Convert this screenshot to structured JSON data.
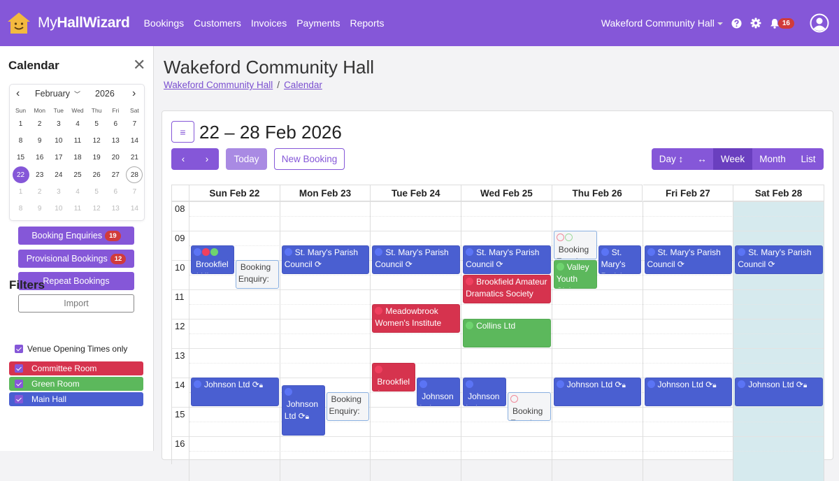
{
  "topbar": {
    "brand_light": "My",
    "brand_bold": "HallWizard",
    "nav": [
      "Bookings",
      "Customers",
      "Invoices",
      "Payments",
      "Reports"
    ],
    "venue": "Wakeford Community Hall",
    "notifications": "16",
    "icons": [
      "help-icon",
      "gear-icon",
      "bell-icon",
      "user-avatar-icon"
    ]
  },
  "sidebar": {
    "title": "Calendar",
    "mini": {
      "month": "February",
      "year": "2026",
      "dow": [
        "Sun",
        "Mon",
        "Tue",
        "Wed",
        "Thu",
        "Fri",
        "Sat"
      ],
      "days": [
        [
          "1",
          "2",
          "3",
          "4",
          "5",
          "6",
          "7"
        ],
        [
          "8",
          "9",
          "10",
          "11",
          "12",
          "13",
          "14"
        ],
        [
          "15",
          "16",
          "17",
          "18",
          "19",
          "20",
          "21"
        ],
        [
          "22",
          "23",
          "24",
          "25",
          "26",
          "27",
          "28"
        ],
        [
          "1",
          "2",
          "3",
          "4",
          "5",
          "6",
          "7"
        ],
        [
          "8",
          "9",
          "10",
          "11",
          "12",
          "13",
          "14"
        ]
      ],
      "selected": "22",
      "today": "28"
    },
    "buttons": [
      {
        "label": "Booking Enquiries",
        "count": "19"
      },
      {
        "label": "Provisional Bookings",
        "count": "12"
      },
      {
        "label": "Repeat Bookings"
      },
      {
        "label": "Import"
      }
    ],
    "filters_title": "Filters",
    "opening_times": "Venue Opening Times only",
    "rooms": [
      {
        "label": "Committee Room",
        "color": "#d6334e"
      },
      {
        "label": "Green Room",
        "color": "#5cb85c"
      },
      {
        "label": "Main Hall",
        "color": "#4a5fd1"
      }
    ]
  },
  "header": {
    "title": "Wakeford Community Hall",
    "breadcrumb": [
      "Wakeford Community Hall",
      "Calendar"
    ]
  },
  "toolbar": {
    "range": "22 – 28 Feb 2026",
    "today": "Today",
    "new_booking": "New Booking",
    "views": [
      "Day ↕",
      "↔",
      "Week",
      "Month",
      "List"
    ],
    "active_view": "Week"
  },
  "calendar": {
    "days": [
      "Sun Feb 22",
      "Mon Feb 23",
      "Tue Feb 24",
      "Wed Feb 25",
      "Thu Feb 26",
      "Fri Feb 27",
      "Sat Feb 28"
    ],
    "hours": [
      "08",
      "09",
      "10",
      "11",
      "12",
      "13",
      "14",
      "15",
      "16"
    ],
    "highlight_day": 6,
    "events": [
      {
        "day": 0,
        "start": 9.5,
        "end": 10.5,
        "room": "main",
        "title": "Brookfield History Society",
        "dots": [
          "main",
          "committee",
          "green"
        ]
      },
      {
        "day": 0,
        "start": 10,
        "end": 11,
        "room": "enquiry",
        "title": "Booking Enquiry:",
        "lane": 1
      },
      {
        "day": 1,
        "start": 9.5,
        "end": 10.5,
        "room": "main",
        "title": "St. Mary's Parish Council",
        "repeat": true
      },
      {
        "day": 2,
        "start": 9.5,
        "end": 10.5,
        "room": "main",
        "title": "St. Mary's Parish Council",
        "repeat": true
      },
      {
        "day": 3,
        "start": 9.5,
        "end": 10.5,
        "room": "main",
        "title": "St. Mary's Parish Council",
        "repeat": true
      },
      {
        "day": 4,
        "start": 9,
        "end": 10,
        "room": "enquiry",
        "title": "Booking Enquiry: Peter Johnson",
        "rings": [
          "committee",
          "green"
        ]
      },
      {
        "day": 4,
        "start": 9.5,
        "end": 10.5,
        "room": "main",
        "title": "St. Mary's Parish Council",
        "lane": 1
      },
      {
        "day": 4,
        "start": 10,
        "end": 11,
        "room": "green",
        "title": "Valley Youth Club - Sarah",
        "lock": true
      },
      {
        "day": 5,
        "start": 9.5,
        "end": 10.5,
        "room": "main",
        "title": "St. Mary's Parish Council",
        "repeat": true
      },
      {
        "day": 6,
        "start": 9.5,
        "end": 10.5,
        "room": "main",
        "title": "St. Mary's Parish Council",
        "repeat": true
      },
      {
        "day": 3,
        "start": 10.5,
        "end": 11.5,
        "room": "committee",
        "title": "Brookfield Amateur Dramatics Society"
      },
      {
        "day": 2,
        "start": 11.5,
        "end": 12.5,
        "room": "committee",
        "title": "Meadowbrook Women's Institute"
      },
      {
        "day": 3,
        "start": 12,
        "end": 13,
        "room": "green",
        "title": "Collins Ltd"
      },
      {
        "day": 2,
        "start": 13.5,
        "end": 14.5,
        "room": "committee",
        "title": "Brookfield Amateur Dramatics Society"
      },
      {
        "day": 2,
        "start": 14,
        "end": 15,
        "room": "main",
        "title": "Johnson Ltd",
        "lane": 1,
        "newline": true
      },
      {
        "day": 0,
        "start": 14,
        "end": 15,
        "room": "main",
        "title": "Johnson Ltd",
        "repeat": true,
        "lock": true
      },
      {
        "day": 1,
        "start": 14.25,
        "end": 16,
        "room": "main",
        "title": "Johnson Ltd",
        "repeat": true,
        "lock": true
      },
      {
        "day": 1,
        "start": 14.5,
        "end": 15.5,
        "room": "enquiry",
        "title": "Booking Enquiry:",
        "lane": 1
      },
      {
        "day": 3,
        "start": 14,
        "end": 15,
        "room": "main",
        "title": "Johnson Ltd",
        "repeat": true,
        "lock": true
      },
      {
        "day": 3,
        "start": 14.5,
        "end": 15.5,
        "room": "enquiry",
        "title": "Booking Enquiry:",
        "lane": 1,
        "rings": [
          "committee"
        ]
      },
      {
        "day": 4,
        "start": 14,
        "end": 15,
        "room": "main",
        "title": "Johnson Ltd",
        "repeat": true,
        "lock": true
      },
      {
        "day": 5,
        "start": 14,
        "end": 15,
        "room": "main",
        "title": "Johnson Ltd",
        "repeat": true,
        "lock": true
      },
      {
        "day": 6,
        "start": 14,
        "end": 15,
        "room": "main",
        "title": "Johnson Ltd",
        "repeat": true,
        "lock": true
      }
    ]
  },
  "colors": {
    "brand": "#8557d8",
    "main": "#4a5fd1",
    "committee": "#d6334e",
    "green": "#5cb85c",
    "highlight": "#d6eaee"
  }
}
